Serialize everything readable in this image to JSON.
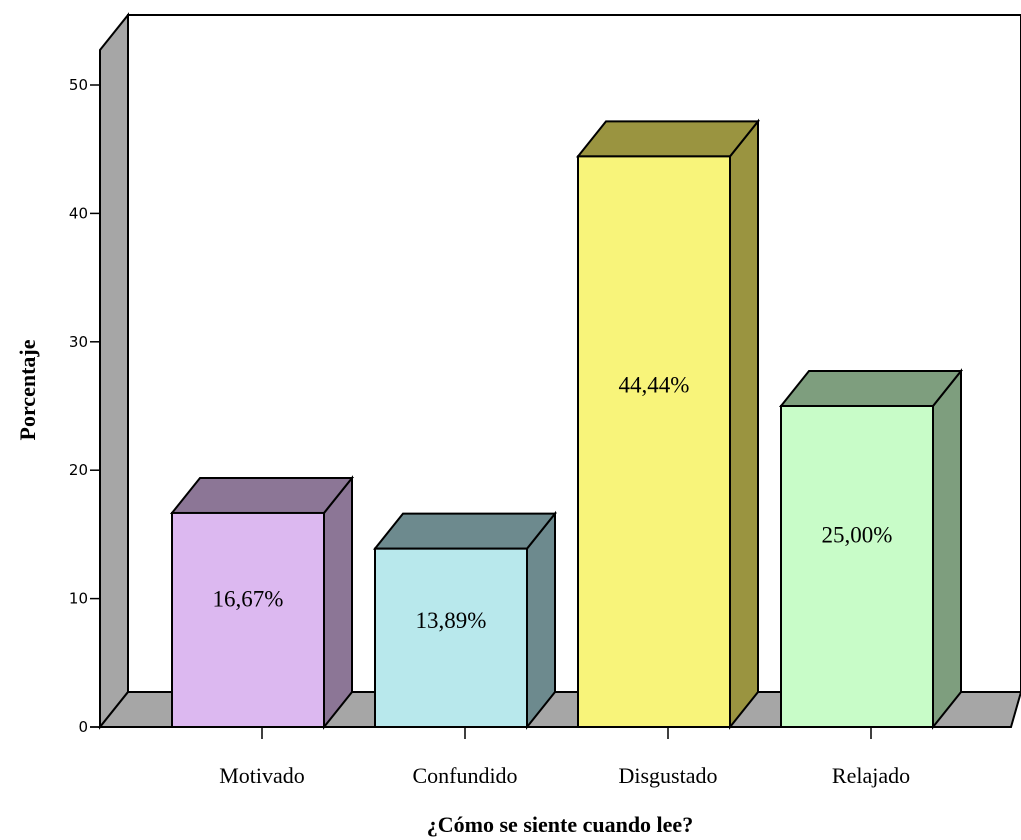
{
  "chart_data": {
    "type": "bar",
    "categories": [
      "Motivado",
      "Confundido",
      "Disgustado",
      "Relajado"
    ],
    "values": [
      16.67,
      13.89,
      44.44,
      25.0
    ],
    "data_labels": [
      "16,67%",
      "13,89%",
      "44,44%",
      "25,00%"
    ],
    "xlabel": "¿Cómo se siente cuando lee?",
    "ylabel": "Porcentaje",
    "ylim": [
      0,
      50
    ],
    "yticks": [
      0,
      10,
      20,
      30,
      40,
      50
    ],
    "grid": false,
    "style": "3d",
    "colors": {
      "front": [
        "#dcb8f0",
        "#b8e8ec",
        "#f8f47a",
        "#c8fcc8"
      ],
      "side": [
        "#8c7696",
        "#6d8a8e",
        "#9a9440",
        "#7e9e7e"
      ],
      "wall": "#a6a6a6",
      "floor": "#a6a6a6"
    }
  }
}
